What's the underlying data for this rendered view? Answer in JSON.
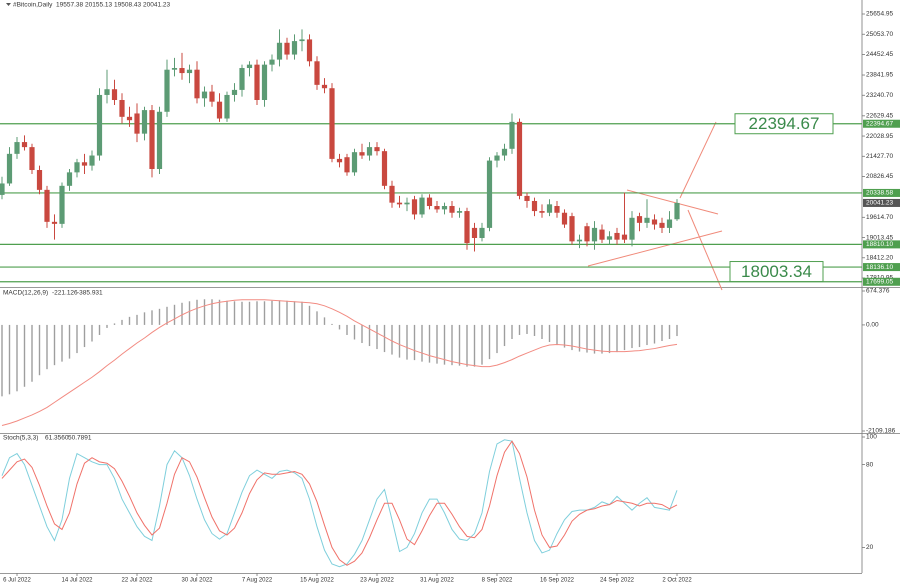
{
  "chart_data": [
    {
      "type": "candlestick",
      "title": "#Bitcoin,Daily",
      "up_color": "#5c9b74",
      "down_color": "#c9483f",
      "level_color": "#4f9f4f",
      "ylim": [
        17544,
        26071
      ],
      "yticks": [
        25654.95,
        {
          "value": 25053.7,
          "label": "25053.70"
        },
        24452.45,
        23841.95,
        {
          "value": 23240.7,
          "label": "23240.70"
        },
        22629.45,
        22028.95,
        {
          "value": 21427.7,
          "label": "21427.70"
        },
        20826.45,
        {
          "value": 19614.7,
          "label": "19614.70"
        },
        19013.45,
        {
          "value": 18412.2,
          "label": "18412.20"
        },
        17810.95
      ],
      "levels": [
        22394.67,
        20338.58,
        {
          "value": 18810.1,
          "label": "18810.10"
        },
        {
          "value": 18136.1,
          "label": "18136.10"
        },
        17699.05
      ],
      "targets": [
        22394.67,
        18003.34
      ],
      "categories": [
        null,
        null,
        "6 Jul 2022",
        null,
        null,
        null,
        null,
        null,
        null,
        null,
        "14 Jul 2022",
        null,
        null,
        null,
        null,
        null,
        null,
        null,
        "22 Jul 2022",
        null,
        null,
        null,
        null,
        null,
        null,
        null,
        "30 Jul 2022",
        null,
        null,
        null,
        null,
        null,
        null,
        null,
        "7 Aug 2022",
        null,
        null,
        null,
        null,
        null,
        null,
        null,
        "15 Aug 2022",
        null,
        null,
        null,
        null,
        null,
        null,
        null,
        "23 Aug 2022",
        null,
        null,
        null,
        null,
        null,
        null,
        null,
        "31 Aug 2022",
        null,
        null,
        null,
        null,
        null,
        null,
        null,
        "8 Sep 2022",
        null,
        null,
        null,
        null,
        null,
        null,
        null,
        "16 Sep 2022",
        null,
        null,
        null,
        null,
        null,
        null,
        null,
        "24 Sep 2022",
        null,
        null,
        null,
        null,
        null,
        null,
        null,
        "2 Oct 2022"
      ],
      "ohlc": [
        [
          20280,
          20820,
          20150,
          20620
        ],
        [
          20620,
          21700,
          20550,
          21500
        ],
        [
          21500,
          22000,
          21350,
          21850
        ],
        [
          21850,
          22050,
          21600,
          21700
        ],
        [
          21700,
          21800,
          20900,
          21020
        ],
        [
          21020,
          21150,
          20300,
          20430
        ],
        [
          20430,
          20550,
          19300,
          19480
        ],
        [
          19480,
          19700,
          18950,
          19420
        ],
        [
          19420,
          20650,
          19300,
          20550
        ],
        [
          20550,
          21050,
          20400,
          20950
        ],
        [
          20950,
          21350,
          20800,
          21250
        ],
        [
          21250,
          21500,
          20900,
          21150
        ],
        [
          21150,
          21600,
          21000,
          21450
        ],
        [
          21450,
          23450,
          21300,
          23250
        ],
        [
          23250,
          24000,
          23000,
          23420
        ],
        [
          23420,
          23700,
          22950,
          23100
        ],
        [
          23100,
          23300,
          22400,
          22600
        ],
        [
          22600,
          22900,
          22300,
          22500
        ],
        [
          22700,
          23000,
          21850,
          22100
        ],
        [
          22100,
          22900,
          21900,
          22800
        ],
        [
          22800,
          22950,
          20800,
          21050
        ],
        [
          21050,
          22900,
          20900,
          22750
        ],
        [
          22750,
          24300,
          22600,
          24000
        ],
        [
          24000,
          24350,
          23800,
          24050
        ],
        [
          24050,
          24500,
          23700,
          23900
        ],
        [
          23900,
          24150,
          23600,
          24000
        ],
        [
          24000,
          24250,
          23000,
          23150
        ],
        [
          23150,
          23500,
          22900,
          23350
        ],
        [
          23350,
          23550,
          22900,
          23050
        ],
        [
          23050,
          23300,
          22450,
          22550
        ],
        [
          22550,
          23350,
          22450,
          23250
        ],
        [
          23250,
          23600,
          23050,
          23400
        ],
        [
          23400,
          24150,
          23200,
          24050
        ],
        [
          24050,
          24250,
          23800,
          24150
        ],
        [
          24150,
          24300,
          22950,
          23100
        ],
        [
          23100,
          24250,
          22900,
          24150
        ],
        [
          24150,
          24450,
          23950,
          24300
        ],
        [
          24300,
          25200,
          24100,
          24800
        ],
        [
          24800,
          24950,
          24300,
          24450
        ],
        [
          24450,
          25050,
          24300,
          24850
        ],
        [
          24850,
          25200,
          24550,
          24900
        ],
        [
          24900,
          25050,
          24100,
          24250
        ],
        [
          24250,
          24400,
          23400,
          23550
        ],
        [
          23550,
          23750,
          23300,
          23450
        ],
        [
          23450,
          23600,
          21250,
          21350
        ],
        [
          21350,
          21500,
          21100,
          21250
        ],
        [
          21400,
          21500,
          20850,
          20950
        ],
        [
          20950,
          21650,
          20850,
          21550
        ],
        [
          21550,
          21800,
          21350,
          21450
        ],
        [
          21450,
          21850,
          21300,
          21700
        ],
        [
          21700,
          21850,
          21450,
          21580
        ],
        [
          21580,
          21650,
          20450,
          20550
        ],
        [
          20550,
          20700,
          19900,
          20050
        ],
        [
          20050,
          20250,
          19900,
          20000
        ],
        [
          20000,
          20200,
          19800,
          20050
        ],
        [
          20150,
          20250,
          19550,
          19700
        ],
        [
          19700,
          20300,
          19600,
          20200
        ],
        [
          20200,
          20300,
          19850,
          19950
        ],
        [
          19950,
          20100,
          19750,
          19850
        ],
        [
          19850,
          20050,
          19700,
          19950
        ],
        [
          19950,
          20100,
          19600,
          19750
        ],
        [
          19750,
          19900,
          19600,
          19800
        ],
        [
          19800,
          19900,
          18650,
          18850
        ],
        [
          19300,
          19450,
          18600,
          19000
        ],
        [
          19000,
          19450,
          18900,
          19300
        ],
        [
          19300,
          21400,
          19200,
          21300
        ],
        [
          21300,
          21550,
          21100,
          21450
        ],
        [
          21450,
          21800,
          21300,
          21650
        ],
        [
          21650,
          22700,
          21500,
          22450
        ],
        [
          22450,
          22550,
          20150,
          20250
        ],
        [
          20250,
          20350,
          19900,
          20100
        ],
        [
          20100,
          20200,
          19650,
          19800
        ],
        [
          19800,
          20000,
          19600,
          19750
        ],
        [
          19750,
          20150,
          19650,
          20000
        ],
        [
          19950,
          20100,
          19600,
          19750
        ],
        [
          19750,
          19850,
          19300,
          19400
        ],
        [
          19650,
          19750,
          18800,
          18900
        ],
        [
          18900,
          19100,
          18700,
          18950
        ],
        [
          19350,
          19450,
          18750,
          18900
        ],
        [
          18900,
          19500,
          18650,
          19300
        ],
        [
          19250,
          19400,
          18850,
          18950
        ],
        [
          18950,
          19200,
          18800,
          19050
        ],
        [
          19150,
          19300,
          18800,
          18950
        ],
        [
          19100,
          20350,
          18850,
          18950
        ],
        [
          18950,
          19800,
          18750,
          19600
        ],
        [
          19650,
          19750,
          19200,
          19450
        ],
        [
          19450,
          20150,
          19300,
          19600
        ],
        [
          19550,
          19700,
          19250,
          19400
        ],
        [
          19450,
          19600,
          19150,
          19300
        ],
        [
          19300,
          19800,
          19150,
          19550
        ],
        [
          19557.38,
          20155.13,
          19508.43,
          20041.23
        ]
      ]
    },
    {
      "type": "combo",
      "title": "MACD(12,26,9)",
      "ylim": [
        -2109.186,
        674.376
      ],
      "yticks": [
        674.376,
        {
          "value": 0,
          "label": "0.00"
        },
        -2109.186
      ],
      "series": [
        {
          "type": "bar",
          "color": "#9e9e9e",
          "values": [
            -1420,
            -1380,
            -1320,
            -1230,
            -1130,
            -1000,
            -880,
            -800,
            -730,
            -670,
            -560,
            -440,
            -330,
            -200,
            -60,
            30,
            100,
            160,
            200,
            250,
            290,
            320,
            360,
            400,
            440,
            470,
            500,
            510,
            510,
            500,
            480,
            470,
            460,
            460,
            470,
            470,
            480,
            490,
            480,
            470,
            460,
            380,
            270,
            150,
            20,
            -90,
            -200,
            -290,
            -360,
            -420,
            -480,
            -540,
            -590,
            -650,
            -690,
            -700,
            -730,
            -750,
            -770,
            -790,
            -800,
            -810,
            -830,
            -830,
            -790,
            -680,
            -560,
            -420,
            -280,
            -200,
            -180,
            -220,
            -280,
            -340,
            -400,
            -450,
            -500,
            -530,
            -550,
            -570,
            -570,
            -560,
            -540,
            -500,
            -460,
            -440,
            -400,
            -370,
            -320,
            -280,
            -221.126
          ]
        },
        {
          "type": "line",
          "color": "#f28b82",
          "values": [
            -2000,
            -1960,
            -1910,
            -1850,
            -1790,
            -1720,
            -1640,
            -1540,
            -1440,
            -1340,
            -1240,
            -1140,
            -1040,
            -930,
            -810,
            -700,
            -580,
            -470,
            -360,
            -260,
            -150,
            -50,
            40,
            120,
            200,
            270,
            330,
            380,
            420,
            450,
            470,
            490,
            500,
            500,
            500,
            500,
            490,
            480,
            470,
            460,
            450,
            440,
            420,
            380,
            320,
            250,
            170,
            80,
            0,
            -80,
            -160,
            -240,
            -320,
            -390,
            -450,
            -510,
            -560,
            -610,
            -650,
            -690,
            -730,
            -760,
            -790,
            -810,
            -830,
            -830,
            -800,
            -750,
            -690,
            -620,
            -560,
            -500,
            -440,
            -400,
            -390,
            -400,
            -420,
            -450,
            -480,
            -500,
            -520,
            -530,
            -530,
            -530,
            -520,
            -510,
            -490,
            -470,
            -440,
            -410,
            -385.931
          ]
        }
      ]
    },
    {
      "type": "line",
      "title": "Stoch(5,3,3)",
      "last_labels": [
        "61.3560",
        "50.7891"
      ],
      "ylim": [
        0,
        100
      ],
      "yticks": [
        100,
        80,
        20
      ],
      "series": [
        {
          "color": "#7fcfdc",
          "values": [
            72,
            85,
            88,
            80,
            65,
            50,
            35,
            25,
            40,
            70,
            88,
            85,
            82,
            80,
            80,
            70,
            55,
            45,
            35,
            28,
            25,
            50,
            80,
            90,
            85,
            72,
            55,
            40,
            30,
            26,
            30,
            45,
            60,
            72,
            76,
            73,
            70,
            75,
            76,
            74,
            70,
            55,
            35,
            18,
            8,
            6,
            8,
            15,
            25,
            40,
            55,
            62,
            40,
            17,
            20,
            30,
            45,
            55,
            55,
            45,
            33,
            26,
            25,
            30,
            45,
            75,
            95,
            98,
            97,
            70,
            45,
            25,
            16,
            18,
            30,
            40,
            46,
            47,
            47,
            49,
            53,
            51,
            57,
            52,
            47,
            52,
            56,
            49,
            48,
            47,
            61.356
          ]
        },
        {
          "color": "#f0726a",
          "values": [
            70,
            76,
            82,
            84,
            78,
            65,
            50,
            37,
            33,
            45,
            66,
            81,
            85,
            82,
            81,
            77,
            68,
            57,
            45,
            36,
            29,
            34,
            52,
            73,
            85,
            82,
            71,
            56,
            42,
            32,
            29,
            34,
            45,
            59,
            69,
            74,
            73,
            73,
            74,
            75,
            73,
            66,
            53,
            36,
            20,
            11,
            7,
            10,
            16,
            27,
            40,
            52,
            52,
            40,
            26,
            22,
            32,
            43,
            52,
            52,
            44,
            35,
            28,
            27,
            33,
            50,
            72,
            89,
            97,
            88,
            71,
            47,
            29,
            20,
            21,
            29,
            39,
            44,
            47,
            48,
            50,
            51,
            54,
            53,
            52,
            50,
            52,
            52,
            51,
            48,
            50.7891
          ]
        }
      ]
    }
  ]
}
